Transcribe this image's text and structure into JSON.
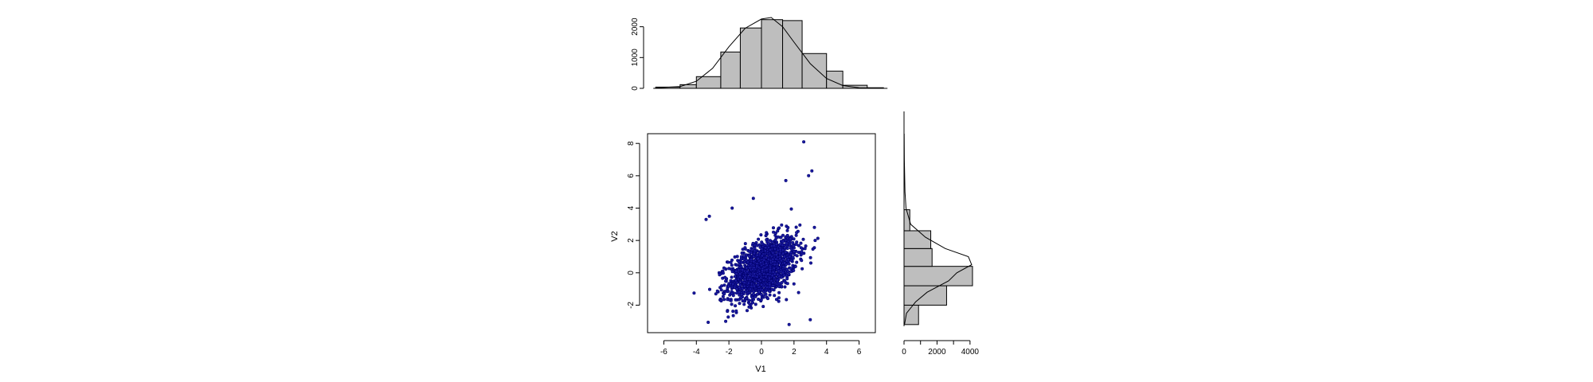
{
  "chart_data": [
    {
      "type": "scatter",
      "xlabel": "V1",
      "ylabel": "V2",
      "xlim": [
        -7,
        7
      ],
      "ylim": [
        -3.7,
        8.6
      ],
      "xticks": [
        -6,
        -4,
        -2,
        0,
        2,
        4,
        6
      ],
      "yticks": [
        -2,
        0,
        2,
        4,
        6,
        8
      ],
      "point_color": "#1a1aa0",
      "n_points": 1500,
      "highlight_points": [
        {
          "x": 2.6,
          "y": 8.1
        },
        {
          "x": 3.1,
          "y": 6.3
        },
        {
          "x": 2.9,
          "y": 6.0
        },
        {
          "x": 1.5,
          "y": 5.7
        },
        {
          "x": -0.5,
          "y": 4.6
        },
        {
          "x": -1.8,
          "y": 4.0
        },
        {
          "x": -3.2,
          "y": 3.5
        },
        {
          "x": -3.4,
          "y": 3.3
        },
        {
          "x": 3.3,
          "y": 2.0
        },
        {
          "x": -2.2,
          "y": -3.0
        },
        {
          "x": 3.0,
          "y": -2.9
        },
        {
          "x": 1.7,
          "y": -3.2
        }
      ]
    },
    {
      "type": "bar",
      "orientation": "vertical",
      "variable": "V1",
      "bin_edges": [
        -6.5,
        -5,
        -4,
        -2.5,
        -1.3,
        0,
        1.3,
        2.5,
        4,
        5,
        6.5,
        7.5
      ],
      "values": [
        40,
        120,
        380,
        1180,
        1960,
        2230,
        2200,
        1130,
        560,
        100,
        20
      ],
      "density": [
        [
          -6.5,
          15
        ],
        [
          -5,
          60
        ],
        [
          -4,
          230
        ],
        [
          -3,
          650
        ],
        [
          -2,
          1350
        ],
        [
          -1,
          1950
        ],
        [
          0,
          2250
        ],
        [
          0.6,
          2300
        ],
        [
          1.3,
          2000
        ],
        [
          2,
          1500
        ],
        [
          3,
          800
        ],
        [
          4,
          320
        ],
        [
          5,
          90
        ],
        [
          6,
          20
        ],
        [
          7.5,
          5
        ]
      ],
      "ylim": [
        0,
        2300
      ],
      "yticks": [
        0,
        1000,
        2000
      ]
    },
    {
      "type": "bar",
      "orientation": "horizontal",
      "variable": "V2",
      "bin_edges": [
        -3.2,
        -2,
        -0.8,
        0.4,
        1.5,
        2.6,
        3.9
      ],
      "values": [
        880,
        2580,
        4150,
        1700,
        1620,
        350
      ],
      "density": [
        [
          -3.2,
          30
        ],
        [
          -2.5,
          150
        ],
        [
          -1.8,
          700
        ],
        [
          -1.2,
          1400
        ],
        [
          -0.5,
          2700
        ],
        [
          0,
          3200
        ],
        [
          0.5,
          4100
        ],
        [
          1,
          3900
        ],
        [
          1.5,
          2500
        ],
        [
          2.2,
          1300
        ],
        [
          3,
          400
        ],
        [
          4,
          120
        ],
        [
          5,
          60
        ],
        [
          6,
          40
        ],
        [
          7,
          20
        ],
        [
          8.6,
          10
        ]
      ],
      "xlim": [
        0,
        4200
      ],
      "xticks": [
        0,
        2000,
        4000
      ],
      "minor_xticks": [
        1000,
        3000
      ]
    }
  ]
}
